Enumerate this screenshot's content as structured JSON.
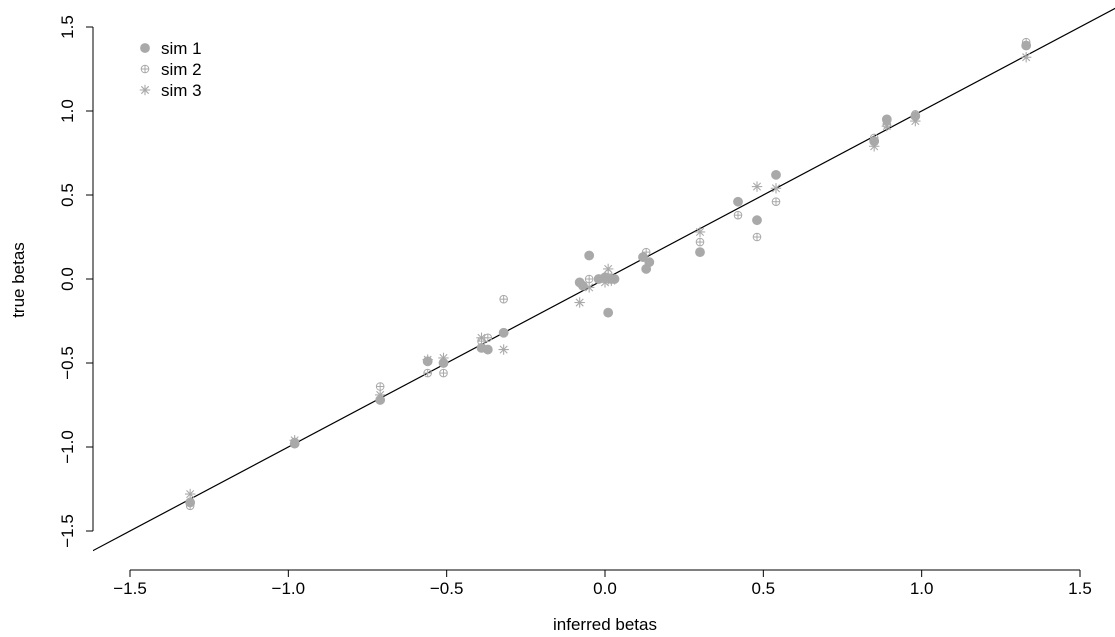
{
  "chart_data": {
    "type": "scatter",
    "title": "",
    "xlabel": "inferred betas",
    "ylabel": "true betas",
    "xlim": [
      -1.6,
      1.6
    ],
    "ylim": [
      -1.6,
      1.6
    ],
    "x_ticks": [
      -1.5,
      -1.0,
      -0.5,
      0.0,
      0.5,
      1.0,
      1.5
    ],
    "x_tick_labels": [
      "−1.5",
      "−1.0",
      "−0.5",
      "0.0",
      "0.5",
      "1.0",
      "1.5"
    ],
    "y_ticks": [
      -1.5,
      -1.0,
      -0.5,
      0.0,
      0.5,
      1.0,
      1.5
    ],
    "y_tick_labels": [
      "−1.5",
      "−1.0",
      "−0.5",
      "0.0",
      "0.5",
      "1.0",
      "1.5"
    ],
    "grid": false,
    "legend_position": "top-left",
    "reference_line": {
      "slope": 1,
      "intercept": 0
    },
    "series": [
      {
        "name": "sim 1",
        "marker": "filled-circle",
        "color": "#a9a9a9",
        "points": [
          [
            -1.31,
            -1.33
          ],
          [
            -0.98,
            -0.98
          ],
          [
            -0.71,
            -0.72
          ],
          [
            -0.56,
            -0.49
          ],
          [
            -0.51,
            -0.5
          ],
          [
            -0.39,
            -0.41
          ],
          [
            -0.37,
            -0.42
          ],
          [
            -0.32,
            -0.32
          ],
          [
            -0.08,
            -0.02
          ],
          [
            -0.07,
            -0.04
          ],
          [
            -0.05,
            0.14
          ],
          [
            -0.02,
            0.0
          ],
          [
            0.0,
            0.01
          ],
          [
            0.01,
            -0.2
          ],
          [
            0.02,
            0.0
          ],
          [
            0.03,
            0.0
          ],
          [
            0.12,
            0.13
          ],
          [
            0.13,
            0.06
          ],
          [
            0.14,
            0.1
          ],
          [
            0.3,
            0.16
          ],
          [
            0.42,
            0.46
          ],
          [
            0.48,
            0.35
          ],
          [
            0.54,
            0.62
          ],
          [
            0.85,
            0.82
          ],
          [
            0.89,
            0.95
          ],
          [
            0.98,
            0.97
          ],
          [
            1.33,
            1.39
          ]
        ]
      },
      {
        "name": "sim 2",
        "marker": "circle-plus",
        "color": "#a9a9a9",
        "points": [
          [
            -1.31,
            -1.35
          ],
          [
            -0.98,
            -0.97
          ],
          [
            -0.71,
            -0.64
          ],
          [
            -0.56,
            -0.56
          ],
          [
            -0.51,
            -0.56
          ],
          [
            -0.39,
            -0.37
          ],
          [
            -0.37,
            -0.35
          ],
          [
            -0.32,
            -0.12
          ],
          [
            -0.05,
            0.0
          ],
          [
            0.01,
            0.0
          ],
          [
            0.01,
            0.03
          ],
          [
            0.13,
            0.16
          ],
          [
            0.3,
            0.22
          ],
          [
            0.42,
            0.38
          ],
          [
            0.48,
            0.25
          ],
          [
            0.54,
            0.46
          ],
          [
            0.85,
            0.84
          ],
          [
            0.89,
            0.92
          ],
          [
            0.98,
            0.98
          ],
          [
            1.33,
            1.41
          ]
        ]
      },
      {
        "name": "sim 3",
        "marker": "asterisk",
        "color": "#a9a9a9",
        "points": [
          [
            -1.31,
            -1.28
          ],
          [
            -0.98,
            -0.96
          ],
          [
            -0.71,
            -0.69
          ],
          [
            -0.56,
            -0.48
          ],
          [
            -0.51,
            -0.47
          ],
          [
            -0.39,
            -0.35
          ],
          [
            -0.32,
            -0.42
          ],
          [
            -0.08,
            -0.14
          ],
          [
            -0.05,
            -0.05
          ],
          [
            0.0,
            -0.02
          ],
          [
            0.01,
            0.06
          ],
          [
            0.02,
            -0.01
          ],
          [
            0.3,
            0.28
          ],
          [
            0.48,
            0.55
          ],
          [
            0.54,
            0.54
          ],
          [
            0.85,
            0.79
          ],
          [
            0.89,
            0.91
          ],
          [
            0.98,
            0.94
          ],
          [
            1.33,
            1.32
          ]
        ]
      }
    ]
  }
}
